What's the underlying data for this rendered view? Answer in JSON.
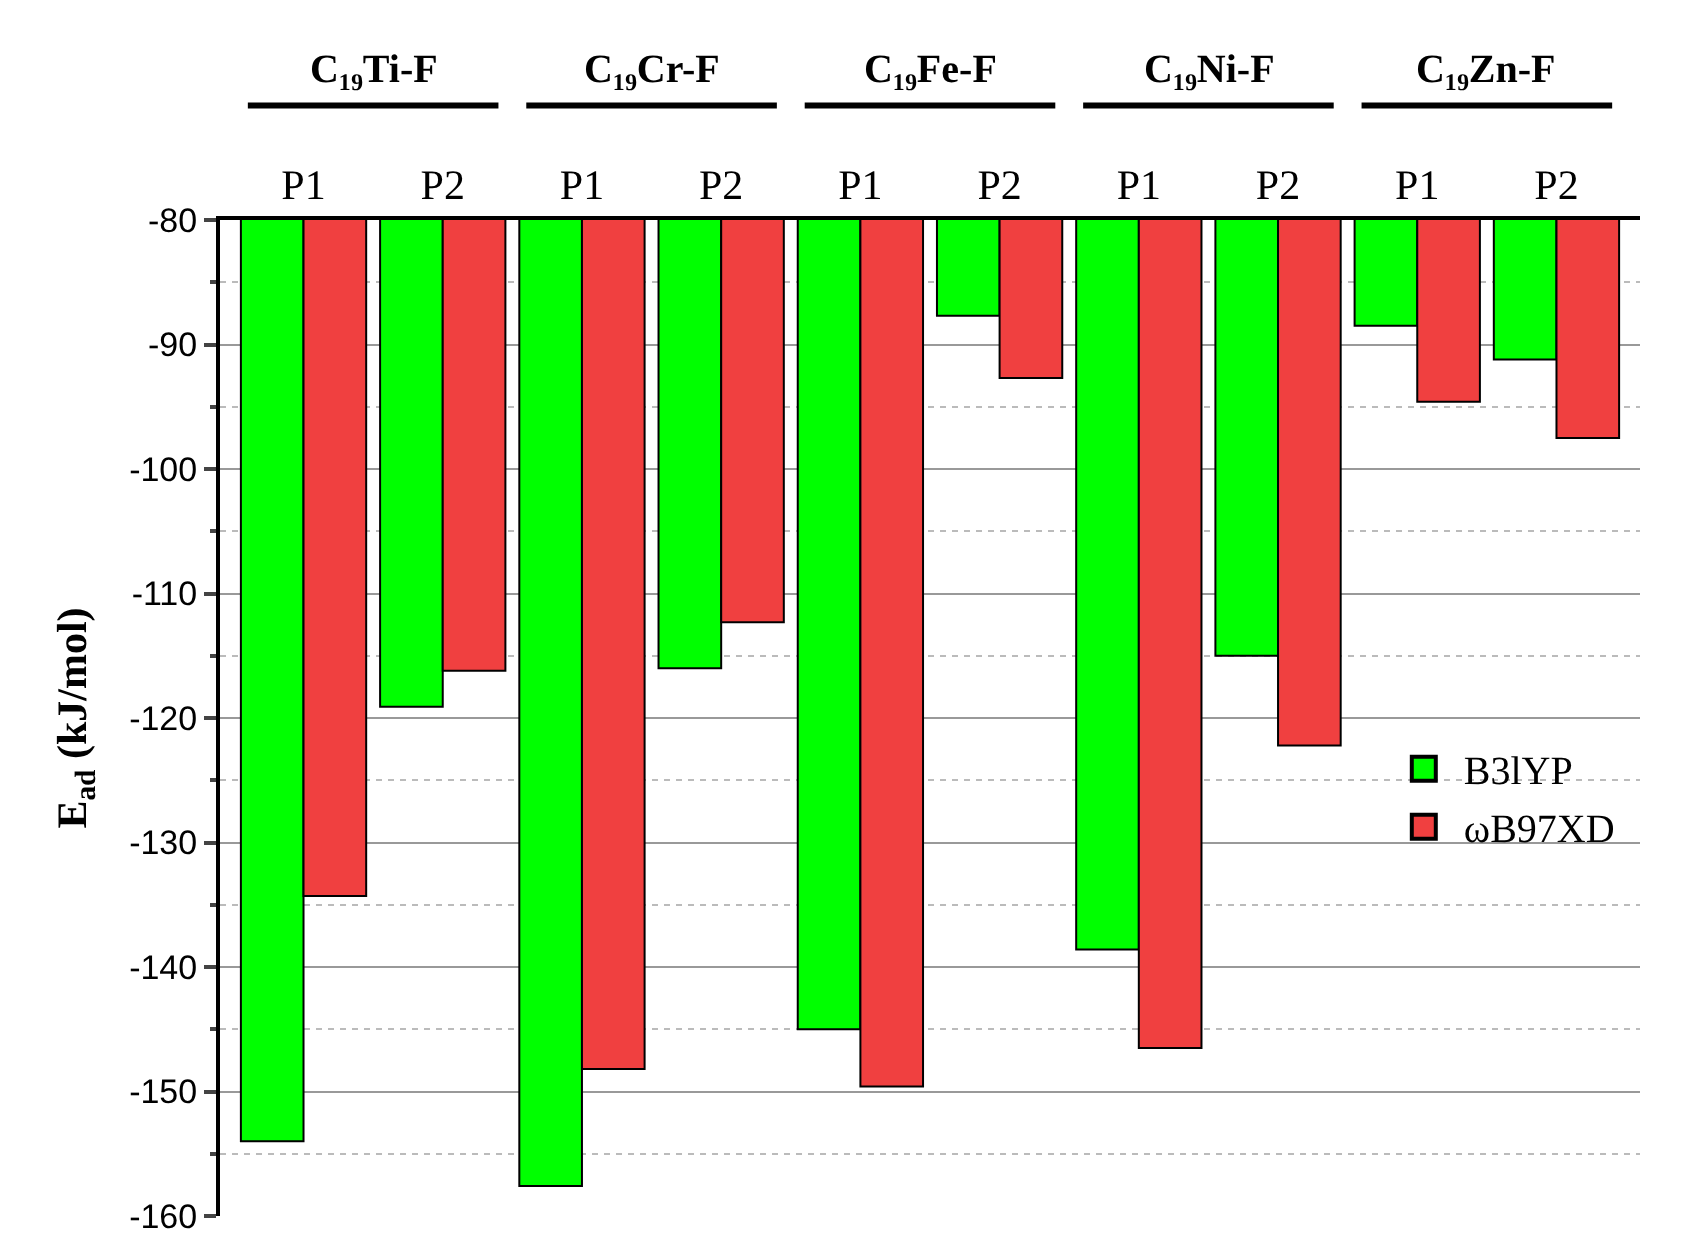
{
  "chart_data": {
    "type": "bar",
    "categories": [
      "P1",
      "P2",
      "P1",
      "P2",
      "P1",
      "P2",
      "P1",
      "P2",
      "P1",
      "P2"
    ],
    "series": [
      {
        "name": "B3lYP",
        "color": "#00ff00",
        "values": [
          -154,
          -119.1,
          -157.6,
          -116,
          -145,
          -87.7,
          -138.6,
          -115,
          -88.5,
          -91.2
        ]
      },
      {
        "name": "ωB97XD",
        "color": "#f04040",
        "values": [
          -134.3,
          -116.2,
          -148.2,
          -112.3,
          -149.6,
          -92.7,
          -146.5,
          -122.2,
          -94.6,
          -97.5
        ]
      }
    ],
    "ylabel": "E$_{ad}$ (kJ/mol)",
    "annotations": [
      "C₁₉Ti-F",
      "C₁₉Cr-F",
      "C₁₉Fe-F",
      "C₁₉Ni-F",
      "C₁₉Zn-F"
    ],
    "ylim": [
      -160,
      -80
    ],
    "yticks": [
      -160,
      -150,
      -140,
      -130,
      -120,
      -110,
      -100,
      -90,
      -80
    ],
    "grid": "y",
    "legend": "right"
  }
}
